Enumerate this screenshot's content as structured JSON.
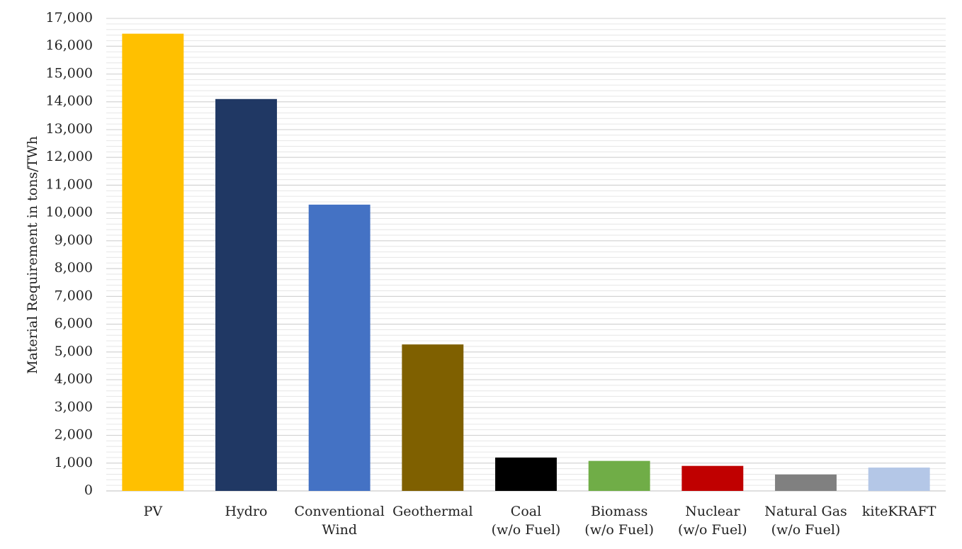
{
  "chart_data": {
    "type": "bar",
    "y_label": "Material Requirement in tons/TWh",
    "categories": [
      [
        "PV"
      ],
      [
        "Hydro"
      ],
      [
        "Conventional",
        "Wind"
      ],
      [
        "Geothermal"
      ],
      [
        "Coal",
        "(w/o Fuel)"
      ],
      [
        "Biomass",
        "(w/o Fuel)"
      ],
      [
        "Nuclear",
        "(w/o Fuel)"
      ],
      [
        "Natural Gas",
        "(w/o Fuel)"
      ],
      [
        "kiteKRAFT"
      ]
    ],
    "values": [
      16450,
      14100,
      10300,
      5270,
      1200,
      1080,
      900,
      590,
      840
    ],
    "colors": [
      "#ffc000",
      "#203864",
      "#4472c4",
      "#7f6000",
      "#000000",
      "#70ad47",
      "#c00000",
      "#808080",
      "#b4c7e7"
    ],
    "ylim": [
      0,
      17000
    ],
    "yticks": [
      0,
      {
        "value": 1000,
        "label": "1,000"
      },
      {
        "value": 2000,
        "label": "2,000"
      },
      {
        "value": 3000,
        "label": "3,000"
      },
      {
        "value": 4000,
        "label": "4,000"
      },
      {
        "value": 5000,
        "label": "5,000"
      },
      {
        "value": 6000,
        "label": "6,000"
      },
      {
        "value": 7000,
        "label": "7,000"
      },
      {
        "value": 8000,
        "label": "8,000"
      },
      {
        "value": 9000,
        "label": "9,000"
      },
      {
        "value": 10000,
        "label": "10,000"
      },
      {
        "value": 11000,
        "label": "11,000"
      },
      {
        "value": 12000,
        "label": "12,000"
      },
      {
        "value": 13000,
        "label": "13,000"
      },
      {
        "value": 14000,
        "label": "14,000"
      },
      {
        "value": 15000,
        "label": "15,000"
      },
      {
        "value": 16000,
        "label": "16,000"
      },
      {
        "value": 17000,
        "label": "17,000"
      }
    ],
    "grid": true,
    "minor_grid_step": 200
  }
}
